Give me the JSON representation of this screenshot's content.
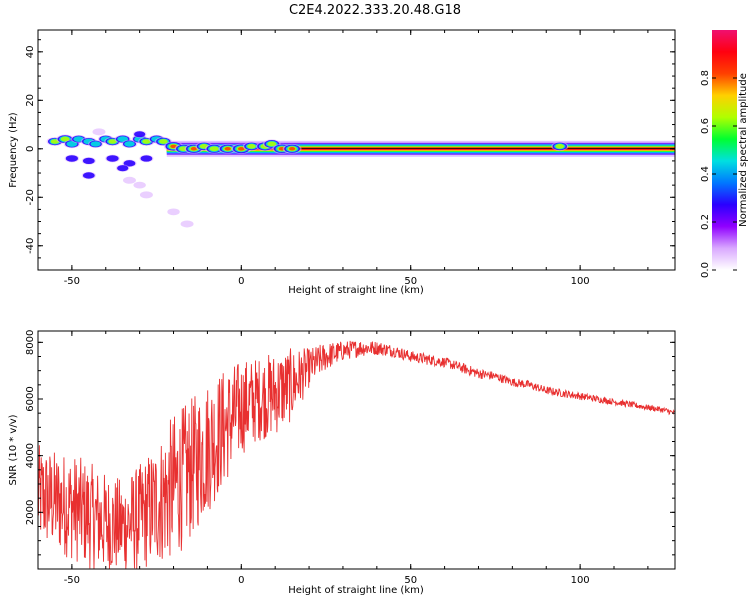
{
  "figure": {
    "title": "C2E4.2022.333.20.48.G18"
  },
  "chart_data": [
    {
      "type": "heatmap",
      "xlabel": "Height of straight line (km)",
      "ylabel": "Frequency (Hz)",
      "xlim": [
        -60,
        128
      ],
      "ylim": [
        -50,
        49
      ],
      "xticks": [
        -50,
        0,
        50,
        100
      ],
      "yticks": [
        -40,
        -20,
        0,
        20,
        40
      ],
      "colorbar": {
        "label": "Normalized spectral amplitude",
        "range": [
          0.0,
          1.0
        ],
        "ticks": [
          0.0,
          0.2,
          0.4,
          0.6,
          0.8
        ],
        "colormap": [
          "#ffffff",
          "#d9a8ff",
          "#9000ff",
          "#2a00ff",
          "#0078ff",
          "#00e0e0",
          "#00ff30",
          "#b0ff00",
          "#ffd000",
          "#ff4000",
          "#ff0010",
          "#f01070"
        ]
      },
      "ridge_line": {
        "frequency": 0,
        "x_start": -22,
        "x_end": 128,
        "amplitude": 0.95
      },
      "clusters": [
        {
          "x": -55,
          "y": 3,
          "amp": 0.55
        },
        {
          "x": -52,
          "y": 4,
          "amp": 0.65
        },
        {
          "x": -50,
          "y": 2,
          "amp": 0.5
        },
        {
          "x": -48,
          "y": 4,
          "amp": 0.45
        },
        {
          "x": -45,
          "y": 3,
          "amp": 0.5
        },
        {
          "x": -43,
          "y": 2,
          "amp": 0.4
        },
        {
          "x": -40,
          "y": 4,
          "amp": 0.45
        },
        {
          "x": -38,
          "y": 3,
          "amp": 0.55
        },
        {
          "x": -35,
          "y": 4,
          "amp": 0.5
        },
        {
          "x": -33,
          "y": 2,
          "amp": 0.45
        },
        {
          "x": -30,
          "y": 4,
          "amp": 0.5
        },
        {
          "x": -28,
          "y": 3,
          "amp": 0.55
        },
        {
          "x": -25,
          "y": 4,
          "amp": 0.5
        },
        {
          "x": -23,
          "y": 3,
          "amp": 0.6
        },
        {
          "x": -20,
          "y": 1,
          "amp": 0.8
        },
        {
          "x": -17,
          "y": 0,
          "amp": 0.7
        },
        {
          "x": -14,
          "y": 0,
          "amp": 0.75
        },
        {
          "x": -11,
          "y": 1,
          "amp": 0.6
        },
        {
          "x": -8,
          "y": 0,
          "amp": 0.7
        },
        {
          "x": -4,
          "y": 0,
          "amp": 0.75
        },
        {
          "x": 0,
          "y": 0,
          "amp": 0.85
        },
        {
          "x": 3,
          "y": 1,
          "amp": 0.6
        },
        {
          "x": 7,
          "y": 1,
          "amp": 0.7
        },
        {
          "x": 9,
          "y": 2,
          "amp": 0.65
        },
        {
          "x": 12,
          "y": 0,
          "amp": 0.8
        },
        {
          "x": 15,
          "y": 0,
          "amp": 0.75
        },
        {
          "x": 94,
          "y": 1,
          "amp": 0.6
        },
        {
          "x": -50,
          "y": -4,
          "amp": 0.35
        },
        {
          "x": -45,
          "y": -5,
          "amp": 0.3
        },
        {
          "x": -38,
          "y": -4,
          "amp": 0.35
        },
        {
          "x": -33,
          "y": -6,
          "amp": 0.3
        },
        {
          "x": -28,
          "y": -4,
          "amp": 0.3
        },
        {
          "x": -45,
          "y": -11,
          "amp": 0.3
        },
        {
          "x": -35,
          "y": -8,
          "amp": 0.25
        },
        {
          "x": -33,
          "y": -13,
          "amp": 0.2
        },
        {
          "x": -30,
          "y": -15,
          "amp": 0.15
        },
        {
          "x": -28,
          "y": -19,
          "amp": 0.2
        },
        {
          "x": -20,
          "y": -26,
          "amp": 0.15
        },
        {
          "x": -16,
          "y": -31,
          "amp": 0.2
        },
        {
          "x": -42,
          "y": 7,
          "amp": 0.2
        },
        {
          "x": -30,
          "y": 6,
          "amp": 0.25
        }
      ]
    },
    {
      "type": "line",
      "xlabel": "Height of straight line (km)",
      "ylabel": "SNR (10 * v/v)",
      "xlim": [
        -60,
        128
      ],
      "ylim": [
        0,
        8400
      ],
      "xticks": [
        -50,
        0,
        50,
        100
      ],
      "yticks": [
        2000,
        4000,
        6000,
        8000
      ],
      "color": "#e83030",
      "series_envelope": {
        "x": [
          -60,
          -55,
          -50,
          -45,
          -40,
          -35,
          -30,
          -25,
          -20,
          -15,
          -10,
          -5,
          0,
          5,
          10,
          15,
          20,
          25,
          30,
          35,
          40,
          45,
          50,
          55,
          60,
          65,
          70,
          75,
          80,
          85,
          90,
          95,
          100,
          105,
          110,
          115,
          120,
          125,
          128
        ],
        "mean": [
          2600,
          2400,
          2200,
          1900,
          1600,
          1500,
          1800,
          2300,
          2900,
          3500,
          4300,
          5000,
          5700,
          6000,
          6200,
          6500,
          7100,
          7500,
          7700,
          7800,
          7800,
          7700,
          7500,
          7400,
          7300,
          7100,
          6900,
          6800,
          6600,
          6500,
          6300,
          6200,
          6100,
          6000,
          5900,
          5800,
          5700,
          5600,
          5500
        ],
        "spread": [
          1800,
          1800,
          1900,
          1900,
          1800,
          1700,
          1900,
          2200,
          2600,
          2500,
          2400,
          2100,
          1700,
          1500,
          1500,
          1300,
          700,
          500,
          350,
          300,
          250,
          220,
          200,
          200,
          180,
          180,
          180,
          160,
          150,
          150,
          140,
          140,
          130,
          120,
          110,
          110,
          100,
          100,
          100
        ]
      }
    }
  ]
}
